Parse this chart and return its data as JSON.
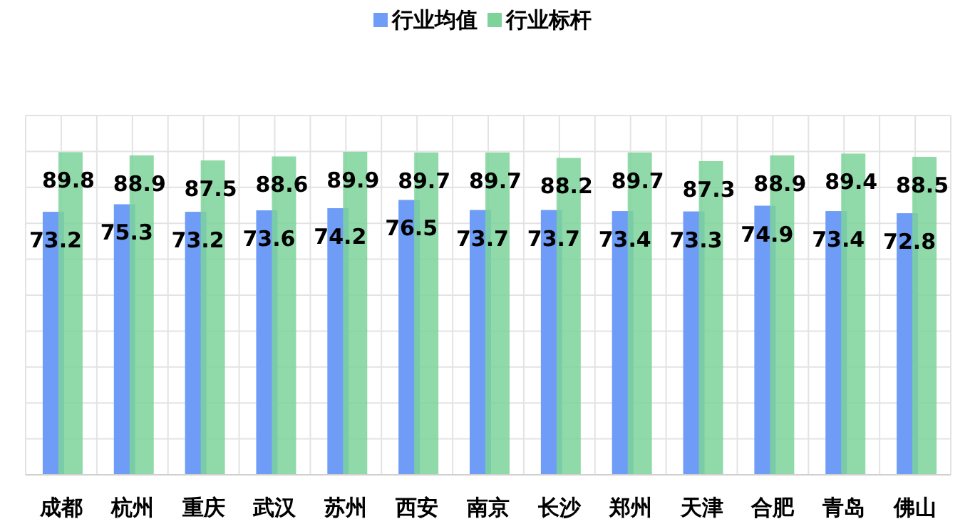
{
  "chart_data": {
    "type": "bar",
    "categories": [
      "成都",
      "杭州",
      "重庆",
      "武汉",
      "苏州",
      "西安",
      "南京",
      "长沙",
      "郑州",
      "天津",
      "合肥",
      "青岛",
      "佛山"
    ],
    "series": [
      {
        "name": "行业均值",
        "color": "#6f9cf6",
        "values": [
          73.2,
          75.3,
          73.2,
          73.6,
          74.2,
          76.5,
          73.7,
          73.7,
          73.4,
          73.3,
          74.9,
          73.4,
          72.8
        ]
      },
      {
        "name": "行业标杆",
        "color": "#7dd39a",
        "values": [
          89.8,
          88.9,
          87.5,
          88.6,
          89.9,
          89.7,
          89.7,
          88.2,
          89.7,
          87.3,
          88.9,
          89.4,
          88.5
        ]
      }
    ],
    "ylim": [
      0,
      100
    ],
    "yticks": [
      {
        "value": 0,
        "label": null
      },
      {
        "value": 10,
        "label": null
      },
      {
        "value": 20,
        "label": null
      },
      {
        "value": 30,
        "label": null
      },
      {
        "value": 40,
        "label": null
      },
      {
        "value": 50,
        "label": null
      },
      {
        "value": 60,
        "label": null
      },
      {
        "value": 70,
        "label": null
      },
      {
        "value": 80,
        "label": null
      },
      {
        "value": 90,
        "label": null
      },
      {
        "value": 100,
        "label": null
      }
    ],
    "tick_labels": "x",
    "grid": true,
    "legend": "top",
    "data_labels": true
  }
}
